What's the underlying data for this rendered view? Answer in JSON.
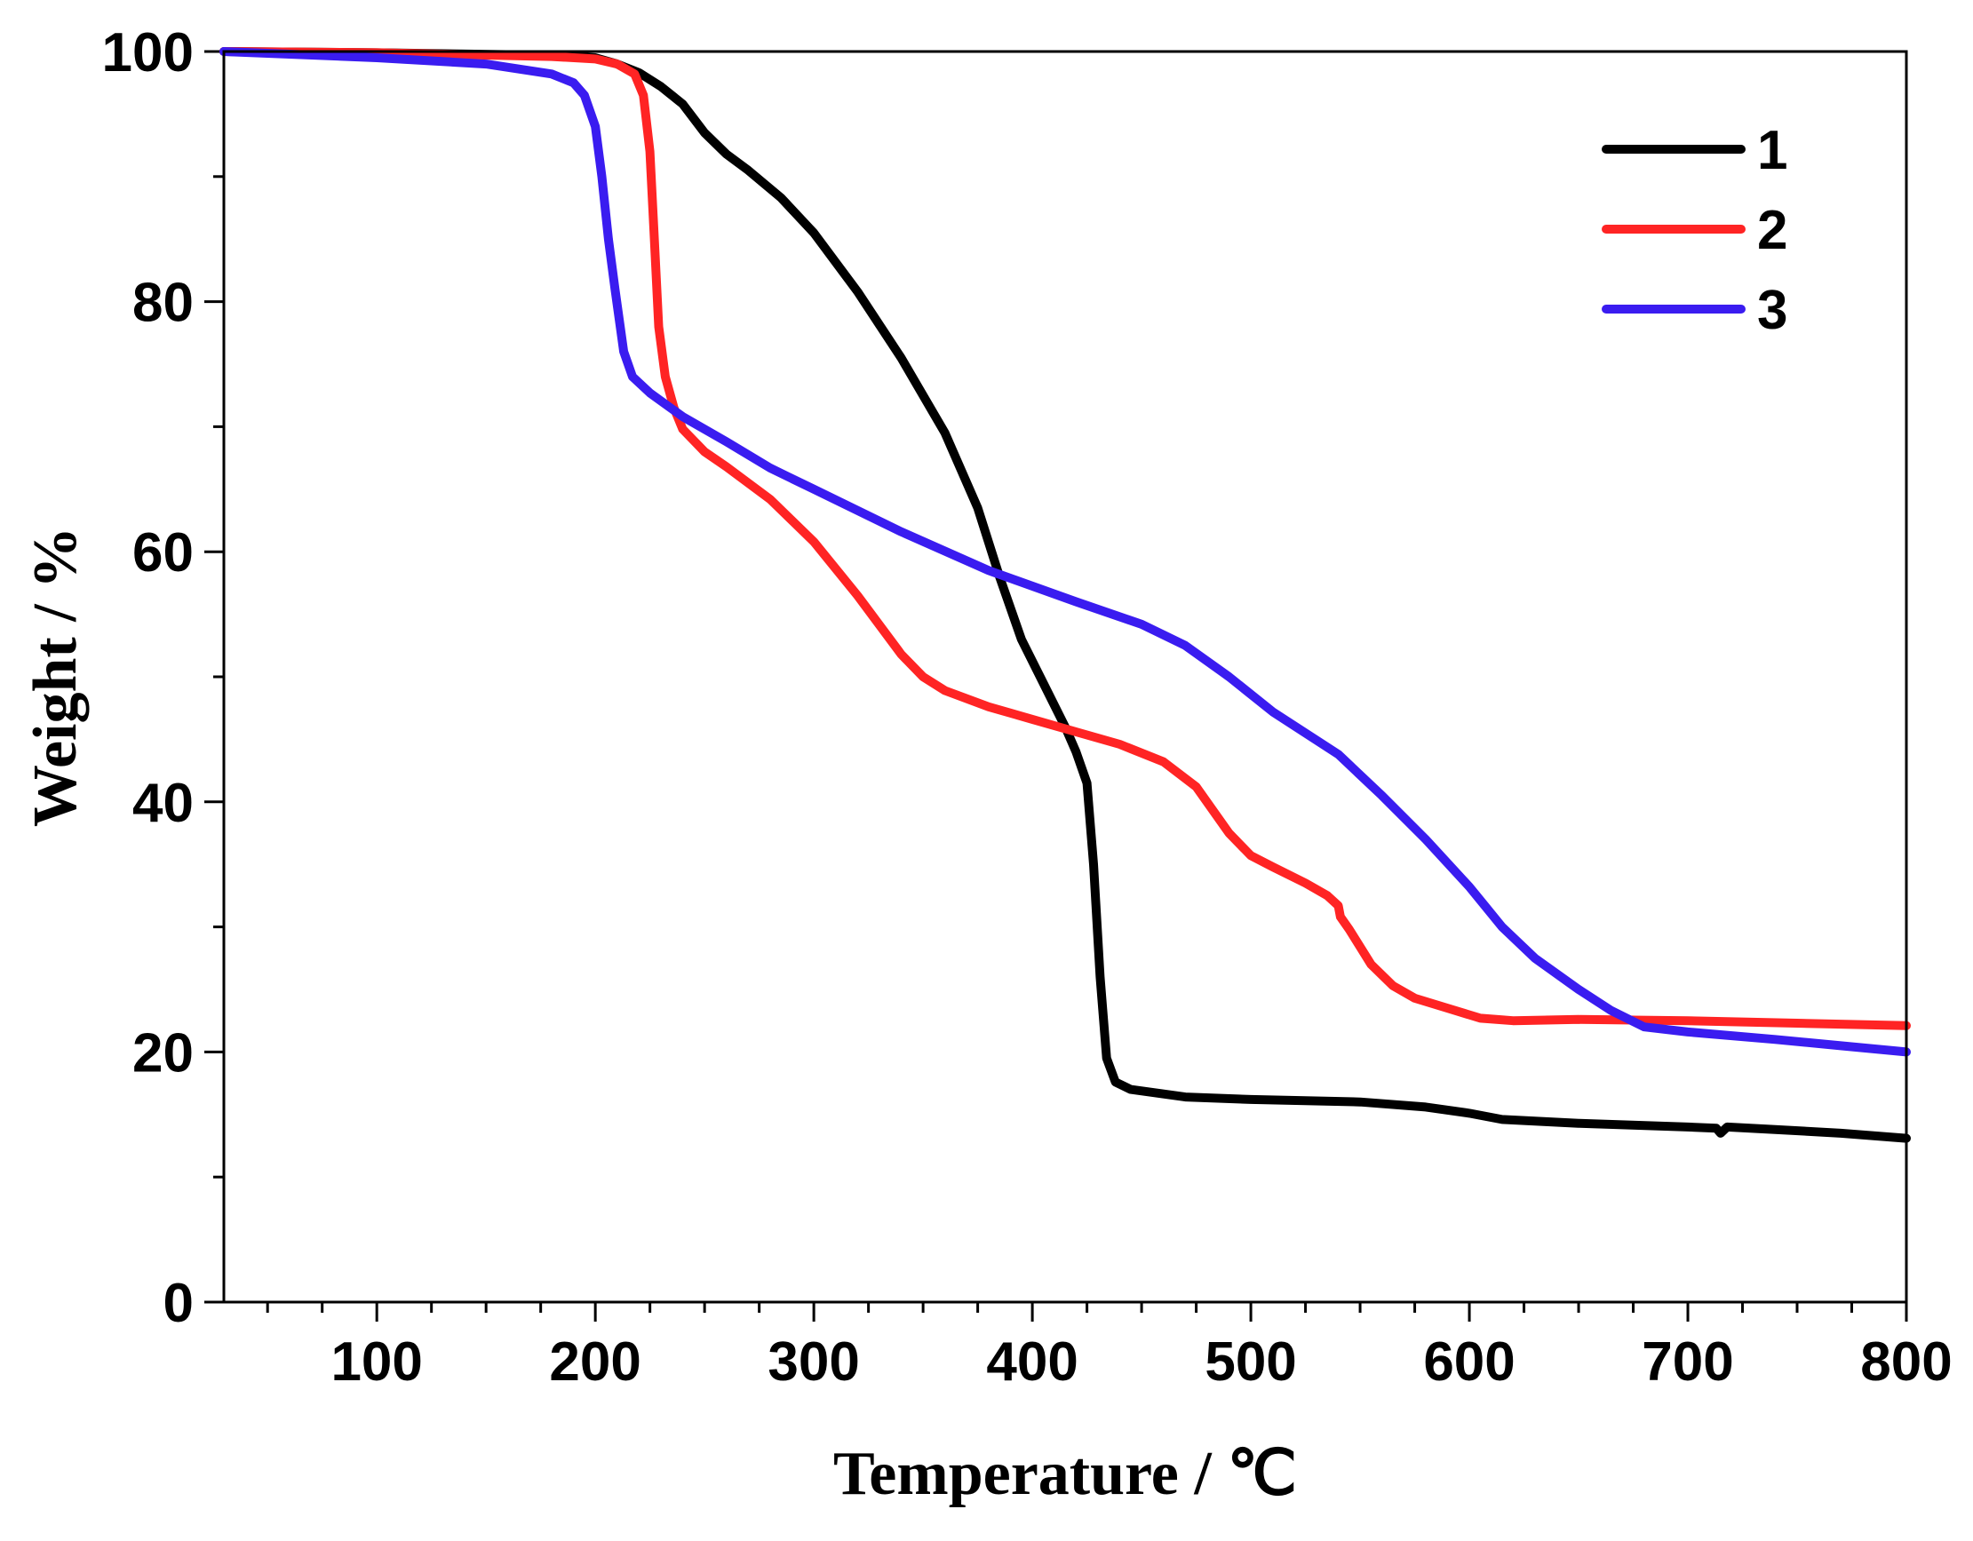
{
  "chart_data": {
    "type": "line",
    "title": "",
    "xlabel": "Temperature / ℃",
    "ylabel": "Weight / %",
    "xlim": [
      30,
      800
    ],
    "ylim": [
      0,
      100
    ],
    "xticks": [
      100,
      200,
      300,
      400,
      500,
      600,
      700,
      800
    ],
    "xticks_minor_step": 25,
    "yticks": [
      0,
      20,
      40,
      60,
      80,
      100
    ],
    "yticks_minor_step": 10,
    "grid": false,
    "legend": {
      "placement": "top-right",
      "entries": [
        "1",
        "2",
        "3"
      ]
    },
    "series": [
      {
        "name": "1",
        "color": "#000000",
        "points": [
          [
            30,
            100
          ],
          [
            100,
            99.9
          ],
          [
            180,
            99.7
          ],
          [
            200,
            99.5
          ],
          [
            210,
            99
          ],
          [
            220,
            98.3
          ],
          [
            230,
            97.2
          ],
          [
            240,
            95.8
          ],
          [
            250,
            93.5
          ],
          [
            260,
            91.8
          ],
          [
            270,
            90.5
          ],
          [
            285,
            88.3
          ],
          [
            300,
            85.5
          ],
          [
            320,
            80.8
          ],
          [
            340,
            75.5
          ],
          [
            360,
            69.5
          ],
          [
            375,
            63.5
          ],
          [
            385,
            58
          ],
          [
            395,
            53
          ],
          [
            405,
            49.5
          ],
          [
            415,
            46
          ],
          [
            420,
            44
          ],
          [
            425,
            41.5
          ],
          [
            428,
            35
          ],
          [
            431,
            26
          ],
          [
            434,
            19.5
          ],
          [
            438,
            17.6
          ],
          [
            445,
            17
          ],
          [
            470,
            16.4
          ],
          [
            500,
            16.2
          ],
          [
            550,
            16
          ],
          [
            580,
            15.6
          ],
          [
            600,
            15.1
          ],
          [
            615,
            14.6
          ],
          [
            650,
            14.3
          ],
          [
            700,
            14
          ],
          [
            713,
            13.9
          ],
          [
            715,
            13.5
          ],
          [
            718,
            14
          ],
          [
            740,
            13.8
          ],
          [
            770,
            13.5
          ],
          [
            800,
            13.1
          ]
        ]
      },
      {
        "name": "2",
        "color": "#ff2424",
        "points": [
          [
            30,
            100
          ],
          [
            100,
            99.9
          ],
          [
            180,
            99.6
          ],
          [
            200,
            99.4
          ],
          [
            210,
            99
          ],
          [
            218,
            98.2
          ],
          [
            222,
            96.5
          ],
          [
            225,
            92
          ],
          [
            227,
            85
          ],
          [
            229,
            78
          ],
          [
            232,
            74
          ],
          [
            236,
            71.5
          ],
          [
            240,
            69.8
          ],
          [
            250,
            68
          ],
          [
            260,
            66.8
          ],
          [
            280,
            64.2
          ],
          [
            300,
            60.8
          ],
          [
            320,
            56.5
          ],
          [
            340,
            51.8
          ],
          [
            350,
            50
          ],
          [
            360,
            48.9
          ],
          [
            380,
            47.6
          ],
          [
            400,
            46.6
          ],
          [
            420,
            45.6
          ],
          [
            440,
            44.6
          ],
          [
            460,
            43.2
          ],
          [
            475,
            41.2
          ],
          [
            490,
            37.5
          ],
          [
            500,
            35.7
          ],
          [
            510,
            34.8
          ],
          [
            525,
            33.5
          ],
          [
            535,
            32.5
          ],
          [
            540,
            31.7
          ],
          [
            541,
            30.8
          ],
          [
            545,
            29.8
          ],
          [
            555,
            27
          ],
          [
            565,
            25.3
          ],
          [
            575,
            24.3
          ],
          [
            590,
            23.5
          ],
          [
            605,
            22.7
          ],
          [
            620,
            22.5
          ],
          [
            650,
            22.6
          ],
          [
            700,
            22.5
          ],
          [
            750,
            22.3
          ],
          [
            800,
            22.1
          ]
        ]
      },
      {
        "name": "3",
        "color": "#3a1cf0",
        "points": [
          [
            30,
            100
          ],
          [
            100,
            99.5
          ],
          [
            150,
            99
          ],
          [
            180,
            98.2
          ],
          [
            190,
            97.5
          ],
          [
            195,
            96.5
          ],
          [
            200,
            94
          ],
          [
            203,
            90
          ],
          [
            206,
            85
          ],
          [
            209,
            81
          ],
          [
            211,
            78.5
          ],
          [
            213,
            76
          ],
          [
            217,
            74
          ],
          [
            225,
            72.7
          ],
          [
            240,
            70.8
          ],
          [
            260,
            68.8
          ],
          [
            280,
            66.7
          ],
          [
            300,
            65
          ],
          [
            340,
            61.6
          ],
          [
            380,
            58.5
          ],
          [
            420,
            56
          ],
          [
            450,
            54.2
          ],
          [
            470,
            52.5
          ],
          [
            490,
            50
          ],
          [
            510,
            47.2
          ],
          [
            540,
            43.8
          ],
          [
            560,
            40.5
          ],
          [
            580,
            37
          ],
          [
            600,
            33.2
          ],
          [
            615,
            30
          ],
          [
            630,
            27.5
          ],
          [
            650,
            25
          ],
          [
            665,
            23.3
          ],
          [
            680,
            22
          ],
          [
            700,
            21.6
          ],
          [
            740,
            21
          ],
          [
            770,
            20.5
          ],
          [
            800,
            20
          ]
        ]
      }
    ]
  }
}
